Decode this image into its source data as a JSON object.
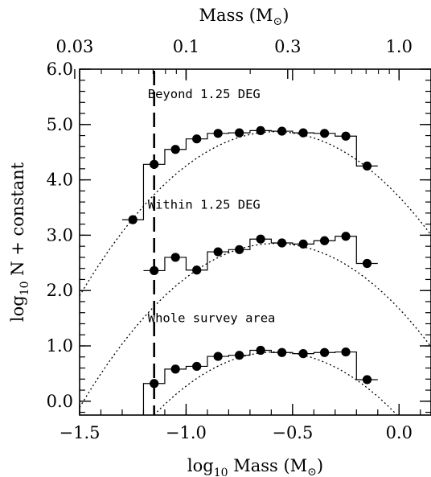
{
  "chart_data": {
    "type": "scatter",
    "title": "",
    "xlabel": {
      "prefix": "log",
      "sub": "10",
      "main": " Mass (M",
      "sun": "⊙",
      "suffix": ")"
    },
    "ylabel": {
      "prefix": "log",
      "sub": "10",
      "main": " N + constant"
    },
    "top_axis_label": {
      "main": "Mass (M",
      "sun": "⊙",
      "suffix": ")"
    },
    "xlim": [
      -1.5,
      0.15
    ],
    "ylim": [
      -0.25,
      6.0
    ],
    "x_ticks": [
      -1.5,
      -1.0,
      -0.5,
      0.0
    ],
    "x_tick_labels": [
      "−1.5",
      "−1.0",
      "−0.5",
      "0.0"
    ],
    "y_ticks": [
      0.0,
      1.0,
      2.0,
      3.0,
      4.0,
      5.0,
      6.0
    ],
    "y_tick_labels": [
      "0.0",
      "1.0",
      "2.0",
      "3.0",
      "4.0",
      "5.0",
      "6.0"
    ],
    "top_ticks": [
      0.03,
      0.1,
      0.3,
      1.0
    ],
    "top_tick_labels": [
      "0.03",
      "0.1",
      "0.3",
      "1.0"
    ],
    "vline_x": -1.15,
    "annotations": [
      {
        "text": "Beyond 1.25 DEG",
        "x": -1.18,
        "y": 5.55
      },
      {
        "text": "Within 1.25 DEG",
        "x": -1.18,
        "y": 3.55
      },
      {
        "text": "Whole survey area",
        "x": -1.18,
        "y": 1.5
      }
    ],
    "series": [
      {
        "x": [
          -1.25,
          -1.15,
          -1.05,
          -0.95,
          -0.85,
          -0.75,
          -0.65,
          -0.55,
          -0.45,
          -0.35,
          -0.25,
          -0.15
        ],
        "y": [
          3.28,
          4.28,
          4.55,
          4.74,
          4.84,
          4.85,
          4.89,
          4.88,
          4.85,
          4.84,
          4.79,
          4.25
        ],
        "hist_bottom": 3.28,
        "fit": {
          "peak_x": -0.58,
          "peak_y": 4.87,
          "curvature": 3.5
        }
      },
      {
        "x": [
          -1.15,
          -1.05,
          -0.95,
          -0.85,
          -0.75,
          -0.65,
          -0.55,
          -0.45,
          -0.35,
          -0.25,
          -0.15
        ],
        "y": [
          2.36,
          2.6,
          2.37,
          2.7,
          2.74,
          2.93,
          2.86,
          2.84,
          2.9,
          2.98,
          2.49
        ],
        "fit": {
          "peak_x": -0.58,
          "peak_y": 2.85,
          "curvature": 3.5
        }
      },
      {
        "x": [
          -1.15,
          -1.05,
          -0.95,
          -0.85,
          -0.75,
          -0.65,
          -0.55,
          -0.45,
          -0.35,
          -0.25,
          -0.15
        ],
        "y": [
          0.32,
          0.58,
          0.63,
          0.81,
          0.83,
          0.92,
          0.88,
          0.86,
          0.88,
          0.89,
          0.39
        ],
        "hist_bottom": -0.25,
        "fit": {
          "peak_x": -0.58,
          "peak_y": 0.89,
          "curvature": 3.5
        }
      }
    ]
  }
}
